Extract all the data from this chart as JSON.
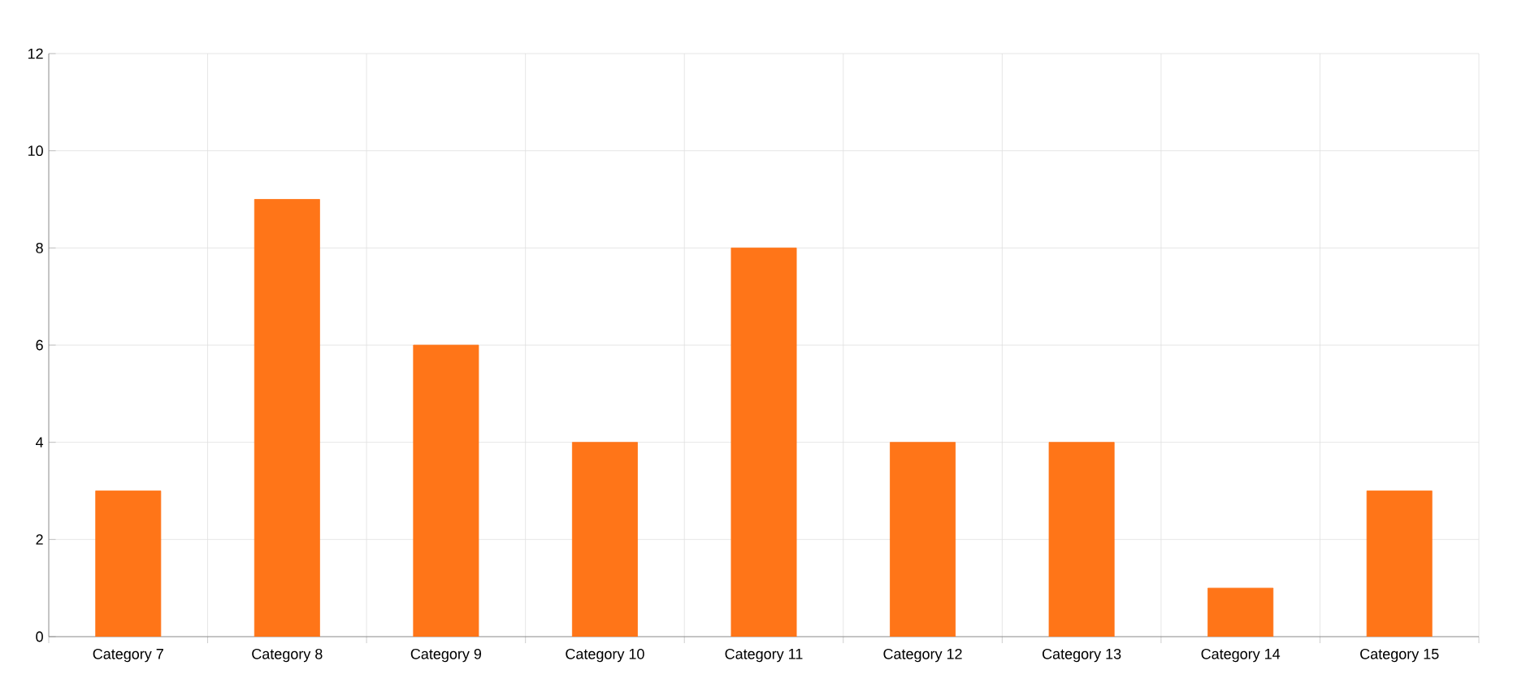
{
  "chart_data": {
    "type": "bar",
    "categories": [
      "Category 7",
      "Category 8",
      "Category 9",
      "Category 10",
      "Category 11",
      "Category 12",
      "Category 13",
      "Category 14",
      "Category 15"
    ],
    "values": [
      3,
      9,
      6,
      4,
      8,
      4,
      4,
      1,
      3
    ],
    "color": "#ff7518",
    "ylim": [
      0,
      12
    ],
    "yticks": [
      0,
      2,
      4,
      6,
      8,
      10,
      12
    ],
    "grid": true
  }
}
